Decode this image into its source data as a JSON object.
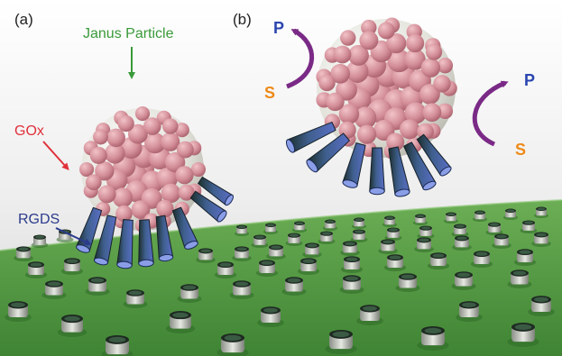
{
  "panels": {
    "a": "(a)",
    "b": "(b)"
  },
  "labels": {
    "janus": "Janus Particle",
    "gox": "GOx",
    "rgds": "RGDS",
    "s_left": "S",
    "p_left": "P",
    "p_right": "P",
    "s_right": "S"
  },
  "colors": {
    "janus_label": "#3a9a3a",
    "gox_label": "#e0303a",
    "rgds_label": "#2b3a8c",
    "substrate_s": "#ee8a18",
    "product_p": "#2b45b0",
    "reaction_arrow": "#7a2a86",
    "surface": "#4c9a3f",
    "particle_core": "#e4e4dc",
    "enzyme_bead": "#cf8a94",
    "binder": "#2c3f6a"
  },
  "icons": {
    "reaction_arrow": "curved-arrow-icon",
    "pointer_arrow": "pointer-arrow-icon"
  }
}
